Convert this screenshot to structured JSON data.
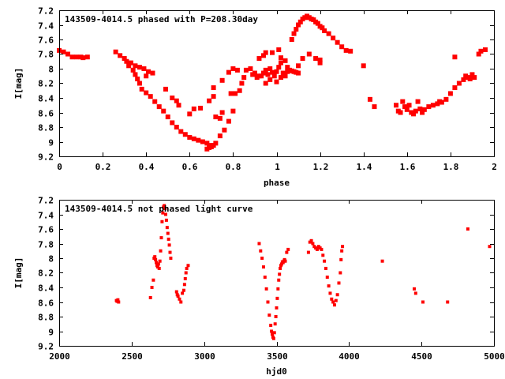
{
  "chart_data": [
    {
      "type": "scatter",
      "title": "143509-4014.5 phased with P=208.30day",
      "xlabel": "phase",
      "ylabel": "I[mag]",
      "xlim": [
        0,
        2
      ],
      "ylim": [
        7.2,
        9.2
      ],
      "y_inverted": true,
      "grid": false,
      "color": "#ff0000",
      "xticks": [
        0,
        0.2,
        0.4,
        0.6,
        0.8,
        1,
        1.2,
        1.4,
        1.6,
        1.8,
        2
      ],
      "xtick_labels": [
        "0",
        "0.2",
        "0.4",
        "0.6",
        "0.8",
        "1",
        "1.2",
        "1.4",
        "1.6",
        "1.8",
        "2"
      ],
      "yticks": [
        7.2,
        7.4,
        7.6,
        7.8,
        8,
        8.2,
        8.4,
        8.6,
        8.8,
        9,
        9.2
      ],
      "ytick_labels": [
        "7.2",
        "7.4",
        "7.6",
        "7.8",
        "8",
        "8.2",
        "8.4",
        "8.6",
        "8.8",
        "9",
        "9.2"
      ],
      "points": [
        [
          0.0,
          7.75
        ],
        [
          0.02,
          7.77
        ],
        [
          0.04,
          7.8
        ],
        [
          0.06,
          7.84
        ],
        [
          0.08,
          7.84
        ],
        [
          0.1,
          7.84
        ],
        [
          0.11,
          7.85
        ],
        [
          0.13,
          7.84
        ],
        [
          0.26,
          7.77
        ],
        [
          0.28,
          7.82
        ],
        [
          0.3,
          7.86
        ],
        [
          0.31,
          7.9
        ],
        [
          0.32,
          7.96
        ],
        [
          0.34,
          8.02
        ],
        [
          0.35,
          8.08
        ],
        [
          0.36,
          8.14
        ],
        [
          0.37,
          8.2
        ],
        [
          0.38,
          8.28
        ],
        [
          0.4,
          8.33
        ],
        [
          0.42,
          8.38
        ],
        [
          0.44,
          8.45
        ],
        [
          0.46,
          8.52
        ],
        [
          0.48,
          8.58
        ],
        [
          0.5,
          8.66
        ],
        [
          0.52,
          8.74
        ],
        [
          0.54,
          8.8
        ],
        [
          0.56,
          8.86
        ],
        [
          0.58,
          8.9
        ],
        [
          0.6,
          8.94
        ],
        [
          0.62,
          8.96
        ],
        [
          0.64,
          8.98
        ],
        [
          0.66,
          9.0
        ],
        [
          0.68,
          9.02
        ],
        [
          0.7,
          9.05
        ],
        [
          0.72,
          9.02
        ],
        [
          0.74,
          8.92
        ],
        [
          0.76,
          8.84
        ],
        [
          0.78,
          8.72
        ],
        [
          0.8,
          8.58
        ],
        [
          0.33,
          7.92
        ],
        [
          0.35,
          7.96
        ],
        [
          0.37,
          7.98
        ],
        [
          0.39,
          8.0
        ],
        [
          0.41,
          8.04
        ],
        [
          0.43,
          8.06
        ],
        [
          0.4,
          8.1
        ],
        [
          0.49,
          8.28
        ],
        [
          0.52,
          8.4
        ],
        [
          0.54,
          8.44
        ],
        [
          0.55,
          8.5
        ],
        [
          0.6,
          8.62
        ],
        [
          0.62,
          8.55
        ],
        [
          0.65,
          8.54
        ],
        [
          0.68,
          9.1
        ],
        [
          0.69,
          9.08
        ],
        [
          0.7,
          9.07
        ],
        [
          0.71,
          9.05
        ],
        [
          0.72,
          8.66
        ],
        [
          0.74,
          8.68
        ],
        [
          0.75,
          8.6
        ],
        [
          0.69,
          8.44
        ],
        [
          0.71,
          8.38
        ],
        [
          0.71,
          8.26
        ],
        [
          0.75,
          8.16
        ],
        [
          0.78,
          8.05
        ],
        [
          0.8,
          8.0
        ],
        [
          0.82,
          8.02
        ],
        [
          0.79,
          8.34
        ],
        [
          0.81,
          8.34
        ],
        [
          0.83,
          8.3
        ],
        [
          0.84,
          8.2
        ],
        [
          0.85,
          8.12
        ],
        [
          0.86,
          8.02
        ],
        [
          0.88,
          8.0
        ],
        [
          0.89,
          8.08
        ],
        [
          0.9,
          8.06
        ],
        [
          0.91,
          8.12
        ],
        [
          0.92,
          8.1
        ],
        [
          0.93,
          8.1
        ],
        [
          0.94,
          8.06
        ],
        [
          0.95,
          8.02
        ],
        [
          0.96,
          8.08
        ],
        [
          0.97,
          8.0
        ],
        [
          0.98,
          8.05
        ],
        [
          0.99,
          8.1
        ],
        [
          1.0,
          8.04
        ],
        [
          1.01,
          7.98
        ],
        [
          1.02,
          7.92
        ],
        [
          0.95,
          8.2
        ],
        [
          0.97,
          8.15
        ],
        [
          1.0,
          8.18
        ],
        [
          1.02,
          8.12
        ],
        [
          1.04,
          8.1
        ],
        [
          1.03,
          8.06
        ],
        [
          1.05,
          8.04
        ],
        [
          0.92,
          7.86
        ],
        [
          0.94,
          7.82
        ],
        [
          0.95,
          7.78
        ],
        [
          0.98,
          7.78
        ],
        [
          1.01,
          7.74
        ],
        [
          1.02,
          7.85
        ],
        [
          1.04,
          7.89
        ],
        [
          1.06,
          8.02
        ],
        [
          1.08,
          8.04
        ],
        [
          1.1,
          8.06
        ],
        [
          1.1,
          7.96
        ],
        [
          1.12,
          7.86
        ],
        [
          1.15,
          7.8
        ],
        [
          1.18,
          7.86
        ],
        [
          1.2,
          7.88
        ],
        [
          1.2,
          7.92
        ],
        [
          1.05,
          7.98
        ],
        [
          1.07,
          8.03
        ],
        [
          1.09,
          8.05
        ],
        [
          1.07,
          7.6
        ],
        [
          1.08,
          7.52
        ],
        [
          1.09,
          7.46
        ],
        [
          1.1,
          7.4
        ],
        [
          1.11,
          7.36
        ],
        [
          1.12,
          7.32
        ],
        [
          1.13,
          7.3
        ],
        [
          1.14,
          7.28
        ],
        [
          1.15,
          7.3
        ],
        [
          1.16,
          7.32
        ],
        [
          1.17,
          7.33
        ],
        [
          1.18,
          7.36
        ],
        [
          1.19,
          7.38
        ],
        [
          1.2,
          7.42
        ],
        [
          1.21,
          7.44
        ],
        [
          1.22,
          7.48
        ],
        [
          1.24,
          7.52
        ],
        [
          1.26,
          7.58
        ],
        [
          1.28,
          7.64
        ],
        [
          1.3,
          7.7
        ],
        [
          1.32,
          7.75
        ],
        [
          1.34,
          7.76
        ],
        [
          1.4,
          7.96
        ],
        [
          1.43,
          8.42
        ],
        [
          1.45,
          8.52
        ],
        [
          1.55,
          8.5
        ],
        [
          1.56,
          8.58
        ],
        [
          1.57,
          8.6
        ],
        [
          1.58,
          8.45
        ],
        [
          1.59,
          8.52
        ],
        [
          1.6,
          8.56
        ],
        [
          1.61,
          8.5
        ],
        [
          1.62,
          8.6
        ],
        [
          1.63,
          8.62
        ],
        [
          1.64,
          8.58
        ],
        [
          1.65,
          8.45
        ],
        [
          1.66,
          8.55
        ],
        [
          1.67,
          8.6
        ],
        [
          1.68,
          8.56
        ],
        [
          1.7,
          8.52
        ],
        [
          1.72,
          8.5
        ],
        [
          1.74,
          8.48
        ],
        [
          1.75,
          8.45
        ],
        [
          1.76,
          8.46
        ],
        [
          1.78,
          8.42
        ],
        [
          1.8,
          8.34
        ],
        [
          1.82,
          8.26
        ],
        [
          1.84,
          8.2
        ],
        [
          1.86,
          8.15
        ],
        [
          1.87,
          8.1
        ],
        [
          1.88,
          8.12
        ],
        [
          1.89,
          8.14
        ],
        [
          1.9,
          8.08
        ],
        [
          1.91,
          8.12
        ],
        [
          1.93,
          7.8
        ],
        [
          1.94,
          7.76
        ],
        [
          1.96,
          7.74
        ],
        [
          1.82,
          7.84
        ]
      ]
    },
    {
      "type": "scatter",
      "title": "143509-4014.5 not phased light curve",
      "xlabel": "hjd0",
      "ylabel": "I[mag]",
      "xlim": [
        2000,
        5000
      ],
      "ylim": [
        7.2,
        9.2
      ],
      "y_inverted": true,
      "grid": false,
      "color": "#ff0000",
      "xticks": [
        2000,
        2500,
        3000,
        3500,
        4000,
        4500,
        5000
      ],
      "xtick_labels": [
        "2000",
        "2500",
        "3000",
        "3500",
        "4000",
        "4500",
        "5000"
      ],
      "yticks": [
        7.2,
        7.4,
        7.6,
        7.8,
        8,
        8.2,
        8.4,
        8.6,
        8.8,
        9,
        9.2
      ],
      "ytick_labels": [
        "7.2",
        "7.4",
        "7.6",
        "7.8",
        "8",
        "8.2",
        "8.4",
        "8.6",
        "8.8",
        "9",
        "9.2"
      ],
      "points": [
        [
          2395,
          8.58
        ],
        [
          2400,
          8.59
        ],
        [
          2405,
          8.57
        ],
        [
          2410,
          8.6
        ],
        [
          2630,
          8.54
        ],
        [
          2640,
          8.4
        ],
        [
          2650,
          8.3
        ],
        [
          2655,
          8.0
        ],
        [
          2660,
          7.98
        ],
        [
          2665,
          8.02
        ],
        [
          2670,
          8.06
        ],
        [
          2675,
          8.1
        ],
        [
          2680,
          8.12
        ],
        [
          2685,
          8.08
        ],
        [
          2690,
          8.14
        ],
        [
          2695,
          8.04
        ],
        [
          2700,
          7.9
        ],
        [
          2705,
          7.72
        ],
        [
          2710,
          7.5
        ],
        [
          2715,
          7.38
        ],
        [
          2720,
          7.3
        ],
        [
          2725,
          7.28
        ],
        [
          2730,
          7.32
        ],
        [
          2735,
          7.4
        ],
        [
          2740,
          7.48
        ],
        [
          2745,
          7.58
        ],
        [
          2750,
          7.66
        ],
        [
          2755,
          7.74
        ],
        [
          2760,
          7.82
        ],
        [
          2765,
          7.92
        ],
        [
          2770,
          8.0
        ],
        [
          2810,
          8.46
        ],
        [
          2815,
          8.5
        ],
        [
          2820,
          8.52
        ],
        [
          2830,
          8.56
        ],
        [
          2840,
          8.6
        ],
        [
          2850,
          8.48
        ],
        [
          2860,
          8.44
        ],
        [
          2865,
          8.36
        ],
        [
          2870,
          8.28
        ],
        [
          2875,
          8.2
        ],
        [
          2880,
          8.14
        ],
        [
          2890,
          8.1
        ],
        [
          3380,
          7.8
        ],
        [
          3390,
          7.9
        ],
        [
          3400,
          8.0
        ],
        [
          3410,
          8.12
        ],
        [
          3420,
          8.26
        ],
        [
          3430,
          8.42
        ],
        [
          3440,
          8.6
        ],
        [
          3450,
          8.78
        ],
        [
          3460,
          8.92
        ],
        [
          3465,
          9.0
        ],
        [
          3470,
          9.04
        ],
        [
          3475,
          9.08
        ],
        [
          3480,
          9.1
        ],
        [
          3485,
          9.02
        ],
        [
          3490,
          8.9
        ],
        [
          3495,
          8.8
        ],
        [
          3500,
          8.68
        ],
        [
          3505,
          8.55
        ],
        [
          3510,
          8.42
        ],
        [
          3515,
          8.3
        ],
        [
          3520,
          8.22
        ],
        [
          3525,
          8.14
        ],
        [
          3530,
          8.1
        ],
        [
          3535,
          8.08
        ],
        [
          3540,
          8.05
        ],
        [
          3545,
          8.06
        ],
        [
          3550,
          8.04
        ],
        [
          3555,
          8.02
        ],
        [
          3560,
          8.04
        ],
        [
          3570,
          7.92
        ],
        [
          3580,
          7.88
        ],
        [
          3720,
          7.92
        ],
        [
          3730,
          7.78
        ],
        [
          3740,
          7.76
        ],
        [
          3750,
          7.8
        ],
        [
          3760,
          7.84
        ],
        [
          3770,
          7.86
        ],
        [
          3780,
          7.88
        ],
        [
          3790,
          7.84
        ],
        [
          3800,
          7.86
        ],
        [
          3810,
          7.88
        ],
        [
          3820,
          7.96
        ],
        [
          3830,
          8.04
        ],
        [
          3840,
          8.14
        ],
        [
          3850,
          8.26
        ],
        [
          3860,
          8.38
        ],
        [
          3870,
          8.48
        ],
        [
          3880,
          8.56
        ],
        [
          3890,
          8.6
        ],
        [
          3900,
          8.64
        ],
        [
          3910,
          8.58
        ],
        [
          3920,
          8.5
        ],
        [
          3930,
          8.34
        ],
        [
          3940,
          8.2
        ],
        [
          3945,
          8.02
        ],
        [
          3950,
          7.9
        ],
        [
          3955,
          7.84
        ],
        [
          4230,
          8.04
        ],
        [
          4450,
          8.42
        ],
        [
          4460,
          8.48
        ],
        [
          4510,
          8.6
        ],
        [
          4680,
          8.6
        ],
        [
          4820,
          7.6
        ],
        [
          4970,
          7.84
        ]
      ]
    }
  ]
}
